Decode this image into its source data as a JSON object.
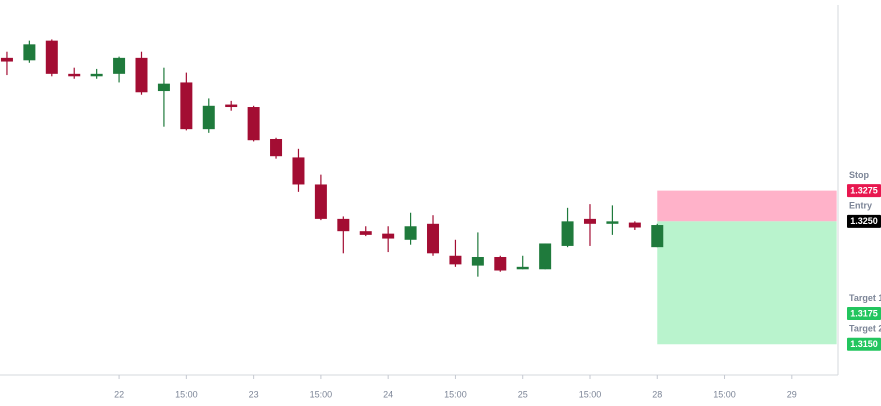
{
  "chart_data": {
    "type": "candlestick",
    "x": [
      0,
      1,
      2,
      3,
      4,
      5,
      6,
      7,
      8,
      9,
      10,
      11,
      12,
      13,
      14,
      15,
      16,
      17,
      18,
      19,
      20,
      21,
      22,
      23,
      24,
      25,
      26,
      27,
      28,
      29
    ],
    "open": [
      1.3383,
      1.3381,
      1.3397,
      1.337,
      1.3368,
      1.337,
      1.3383,
      1.3356,
      1.3363,
      1.3325,
      1.3345,
      1.3343,
      1.3317,
      1.3302,
      1.328,
      1.3252,
      1.3242,
      1.324,
      1.3235,
      1.3248,
      1.3222,
      1.3214,
      1.3221,
      1.3211,
      1.3211,
      1.323,
      1.3252,
      1.3248,
      1.3249,
      1.3229
    ],
    "high": [
      1.3388,
      1.3397,
      1.3398,
      1.3375,
      1.3374,
      1.3384,
      1.3388,
      1.3375,
      1.3371,
      1.335,
      1.3348,
      1.3344,
      1.3318,
      1.3309,
      1.3288,
      1.3254,
      1.3246,
      1.3246,
      1.3257,
      1.3255,
      1.3235,
      1.3241,
      1.3222,
      1.3222,
      1.3232,
      1.3261,
      1.3264,
      1.3263,
      1.325,
      1.3248
    ],
    "low": [
      1.3369,
      1.3379,
      1.3368,
      1.3366,
      1.3366,
      1.3363,
      1.3353,
      1.3327,
      1.3324,
      1.3322,
      1.334,
      1.3315,
      1.3301,
      1.3274,
      1.3251,
      1.3224,
      1.3238,
      1.3225,
      1.3231,
      1.3222,
      1.3213,
      1.3205,
      1.3209,
      1.3211,
      1.3211,
      1.3229,
      1.323,
      1.3239,
      1.3243,
      1.3229
    ],
    "close": [
      1.338,
      1.3394,
      1.337,
      1.3368,
      1.337,
      1.3383,
      1.3355,
      1.3362,
      1.3325,
      1.3344,
      1.3343,
      1.3316,
      1.3303,
      1.328,
      1.3252,
      1.3242,
      1.3239,
      1.3236,
      1.3246,
      1.3224,
      1.3215,
      1.3221,
      1.321,
      1.3213,
      1.3232,
      1.325,
      1.3248,
      1.325,
      1.3245,
      1.3247
    ],
    "up_color": "#1f7a3c",
    "down_color": "#a30d33",
    "xlim": [
      -0.31,
      37.06
    ],
    "ylim": [
      1.3125,
      1.3426
    ],
    "xticks": [
      {
        "value": 5,
        "label": "22"
      },
      {
        "value": 8,
        "label": "15:00"
      },
      {
        "value": 11,
        "label": "23"
      },
      {
        "value": 14,
        "label": "15:00"
      },
      {
        "value": 17,
        "label": "24"
      },
      {
        "value": 20,
        "label": "15:00"
      },
      {
        "value": 23,
        "label": "25"
      },
      {
        "value": 26,
        "label": "15:00"
      },
      {
        "value": 29,
        "label": "28"
      },
      {
        "value": 32,
        "label": "15:00"
      },
      {
        "value": 35,
        "label": "29"
      }
    ],
    "position": {
      "start": 29,
      "end": 37,
      "stop_zone_color": "#ffb2c9",
      "target_zone_color": "#b9f3cd",
      "levels": [
        {
          "name": "Stop",
          "value": 1.3275,
          "color": "#e8174f"
        },
        {
          "name": "Entry",
          "value": 1.325,
          "label": "1.3250",
          "color": "#000000"
        },
        {
          "name": "Target 1",
          "value": 1.3175,
          "color": "#22c55e"
        },
        {
          "name": "Target 2",
          "value": 1.315,
          "label": "1.3150",
          "color": "#22c55e"
        }
      ]
    }
  }
}
